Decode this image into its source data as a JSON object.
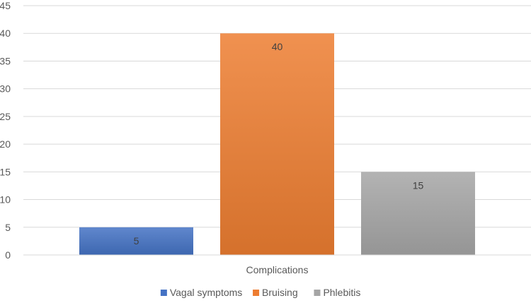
{
  "chart_data": {
    "type": "bar",
    "title": "",
    "xlabel": "",
    "ylabel": "",
    "categories": [
      "Complications"
    ],
    "ylim": [
      0,
      45
    ],
    "ytick_step": 5,
    "grid": true,
    "legend_position": "bottom",
    "series": [
      {
        "name": "Vagal symptoms",
        "values": [
          5
        ],
        "color": "#4472C4"
      },
      {
        "name": "Bruising",
        "values": [
          40
        ],
        "color": "#ED7D31"
      },
      {
        "name": "Phlebitis",
        "values": [
          15
        ],
        "color": "#A5A5A5"
      }
    ],
    "data_labels": true
  }
}
